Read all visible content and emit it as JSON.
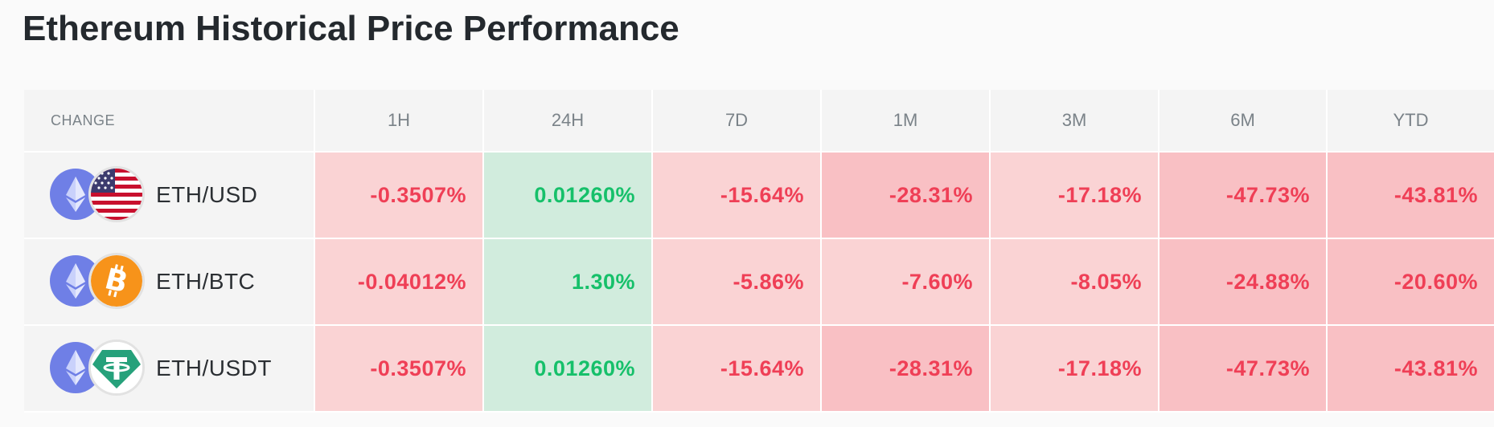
{
  "title": "Ethereum Historical Price Performance",
  "columns": [
    "CHANGE",
    "1H",
    "24H",
    "7D",
    "1M",
    "3M",
    "6M",
    "YTD"
  ],
  "rows": [
    {
      "pair": "ETH/USD",
      "quote_icon": "us-flag-icon",
      "values": [
        "-0.3507%",
        "0.01260%",
        "-15.64%",
        "-28.31%",
        "-17.18%",
        "-47.73%",
        "-43.81%"
      ]
    },
    {
      "pair": "ETH/BTC",
      "quote_icon": "bitcoin-icon",
      "values": [
        "-0.04012%",
        "1.30%",
        "-5.86%",
        "-7.60%",
        "-8.05%",
        "-24.88%",
        "-20.60%"
      ]
    },
    {
      "pair": "ETH/USDT",
      "quote_icon": "tether-icon",
      "values": [
        "-0.3507%",
        "0.01260%",
        "-15.64%",
        "-28.31%",
        "-17.18%",
        "-47.73%",
        "-43.81%"
      ]
    }
  ],
  "colors": {
    "negative_text": "#ef3f56",
    "positive_text": "#16c06a",
    "negative_light_bg": "#fad3d4",
    "negative_mid_bg": "#f9c0c4",
    "positive_bg": "#d1ecdd",
    "eth": "#6f7fe6",
    "bitcoin": "#f7931a",
    "tether": "#26a17b"
  }
}
